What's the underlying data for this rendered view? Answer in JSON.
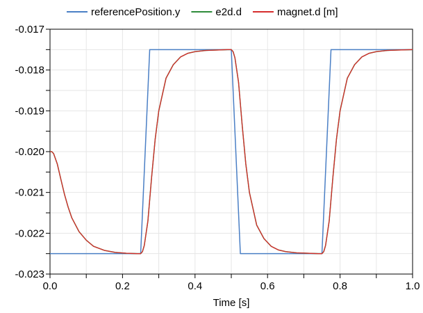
{
  "chart_data": {
    "type": "line",
    "xlabel": "Time [s]",
    "ylabel": "",
    "xlim": [
      0.0,
      1.0
    ],
    "ylim": [
      -0.023,
      -0.017
    ],
    "grid": true,
    "legend_position": "top",
    "x_ticks": [
      "0.0",
      "0.2",
      "0.4",
      "0.6",
      "0.8",
      "1.0"
    ],
    "y_ticks": [
      "-0.017",
      "-0.018",
      "-0.019",
      "-0.020",
      "-0.021",
      "-0.022",
      "-0.023"
    ],
    "series": [
      {
        "name": "referencePosition.y",
        "color": "#4a7fc5",
        "x": [
          0.0,
          0.25,
          0.275,
          0.5,
          0.525,
          0.75,
          0.775,
          1.0
        ],
        "y": [
          -0.0225,
          -0.0225,
          -0.0175,
          -0.0175,
          -0.0225,
          -0.0225,
          -0.0175,
          -0.0175
        ]
      },
      {
        "name": "e2d.d",
        "color": "#2e8b3a",
        "x": [
          0.0,
          0.005,
          0.01,
          0.02,
          0.03,
          0.04,
          0.05,
          0.06,
          0.08,
          0.1,
          0.12,
          0.15,
          0.18,
          0.21,
          0.24,
          0.25,
          0.255,
          0.26,
          0.27,
          0.28,
          0.29,
          0.3,
          0.32,
          0.34,
          0.36,
          0.38,
          0.4,
          0.43,
          0.46,
          0.49,
          0.5,
          0.505,
          0.51,
          0.52,
          0.53,
          0.54,
          0.55,
          0.57,
          0.59,
          0.61,
          0.63,
          0.65,
          0.68,
          0.71,
          0.74,
          0.75,
          0.755,
          0.76,
          0.77,
          0.78,
          0.79,
          0.8,
          0.82,
          0.84,
          0.86,
          0.88,
          0.9,
          0.93,
          0.96,
          1.0
        ],
        "y": [
          -0.02,
          -0.02,
          -0.02005,
          -0.0203,
          -0.02068,
          -0.02105,
          -0.02136,
          -0.02162,
          -0.02196,
          -0.02217,
          -0.02232,
          -0.02242,
          -0.02247,
          -0.02249,
          -0.0225,
          -0.0225,
          -0.02245,
          -0.0223,
          -0.0217,
          -0.02065,
          -0.0197,
          -0.019,
          -0.0182,
          -0.01787,
          -0.01768,
          -0.01759,
          -0.01755,
          -0.01752,
          -0.01751,
          -0.0175,
          -0.0175,
          -0.01755,
          -0.0177,
          -0.0183,
          -0.01935,
          -0.0203,
          -0.021,
          -0.0218,
          -0.02213,
          -0.02232,
          -0.02241,
          -0.02245,
          -0.02248,
          -0.02249,
          -0.0225,
          -0.0225,
          -0.02245,
          -0.0223,
          -0.0217,
          -0.02065,
          -0.0197,
          -0.019,
          -0.0182,
          -0.01787,
          -0.01768,
          -0.01759,
          -0.01755,
          -0.01752,
          -0.01751,
          -0.0175
        ]
      },
      {
        "name": "magnet.d [m]",
        "color": "#d62c2c",
        "x": [
          0.0,
          0.005,
          0.01,
          0.02,
          0.03,
          0.04,
          0.05,
          0.06,
          0.08,
          0.1,
          0.12,
          0.15,
          0.18,
          0.21,
          0.24,
          0.25,
          0.255,
          0.26,
          0.27,
          0.28,
          0.29,
          0.3,
          0.32,
          0.34,
          0.36,
          0.38,
          0.4,
          0.43,
          0.46,
          0.49,
          0.5,
          0.505,
          0.51,
          0.52,
          0.53,
          0.54,
          0.55,
          0.57,
          0.59,
          0.61,
          0.63,
          0.65,
          0.68,
          0.71,
          0.74,
          0.75,
          0.755,
          0.76,
          0.77,
          0.78,
          0.79,
          0.8,
          0.82,
          0.84,
          0.86,
          0.88,
          0.9,
          0.93,
          0.96,
          1.0
        ],
        "y": [
          -0.02,
          -0.02,
          -0.02005,
          -0.0203,
          -0.02068,
          -0.02105,
          -0.02136,
          -0.02162,
          -0.02196,
          -0.02217,
          -0.02232,
          -0.02242,
          -0.02247,
          -0.02249,
          -0.0225,
          -0.0225,
          -0.02245,
          -0.0223,
          -0.0217,
          -0.02065,
          -0.0197,
          -0.019,
          -0.0182,
          -0.01787,
          -0.01768,
          -0.01759,
          -0.01755,
          -0.01752,
          -0.01751,
          -0.0175,
          -0.0175,
          -0.01755,
          -0.0177,
          -0.0183,
          -0.01935,
          -0.0203,
          -0.021,
          -0.0218,
          -0.02213,
          -0.02232,
          -0.02241,
          -0.02245,
          -0.02248,
          -0.02249,
          -0.0225,
          -0.0225,
          -0.02245,
          -0.0223,
          -0.0217,
          -0.02065,
          -0.0197,
          -0.019,
          -0.0182,
          -0.01787,
          -0.01768,
          -0.01759,
          -0.01755,
          -0.01752,
          -0.01751,
          -0.0175
        ]
      }
    ]
  }
}
